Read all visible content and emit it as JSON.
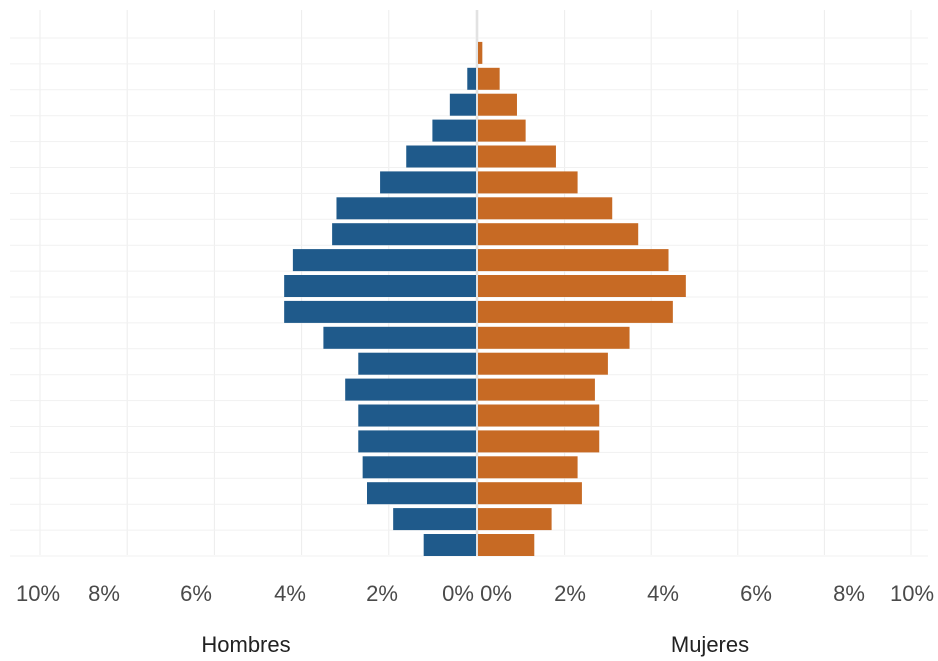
{
  "chart_data": {
    "type": "bar",
    "orientation": "population-pyramid",
    "title": "",
    "xlabel": "",
    "ylabel": "",
    "xlim": [
      0,
      10
    ],
    "grid": true,
    "legend": "none",
    "left_series": {
      "name": "Hombres",
      "color": "#1f5a8b",
      "values": [
        1.2,
        1.9,
        2.5,
        2.6,
        2.7,
        2.7,
        3.0,
        2.7,
        3.5,
        4.4,
        4.4,
        4.2,
        3.3,
        3.2,
        2.2,
        1.6,
        1.0,
        0.6,
        0.2,
        0.0
      ]
    },
    "right_series": {
      "name": "Mujeres",
      "color": "#c76a24",
      "values": [
        1.3,
        1.7,
        2.4,
        2.3,
        2.8,
        2.8,
        2.7,
        3.0,
        3.5,
        4.5,
        4.8,
        4.4,
        3.7,
        3.1,
        2.3,
        1.8,
        1.1,
        0.9,
        0.5,
        0.1
      ]
    },
    "left_ticks": [
      "10%",
      "8%",
      "6%",
      "4%",
      "2%",
      "0%"
    ],
    "right_ticks": [
      "0%",
      "2%",
      "4%",
      "6%",
      "8%",
      "10%"
    ],
    "left_axis_label": "Hombres",
    "right_axis_label": "Mujeres"
  }
}
